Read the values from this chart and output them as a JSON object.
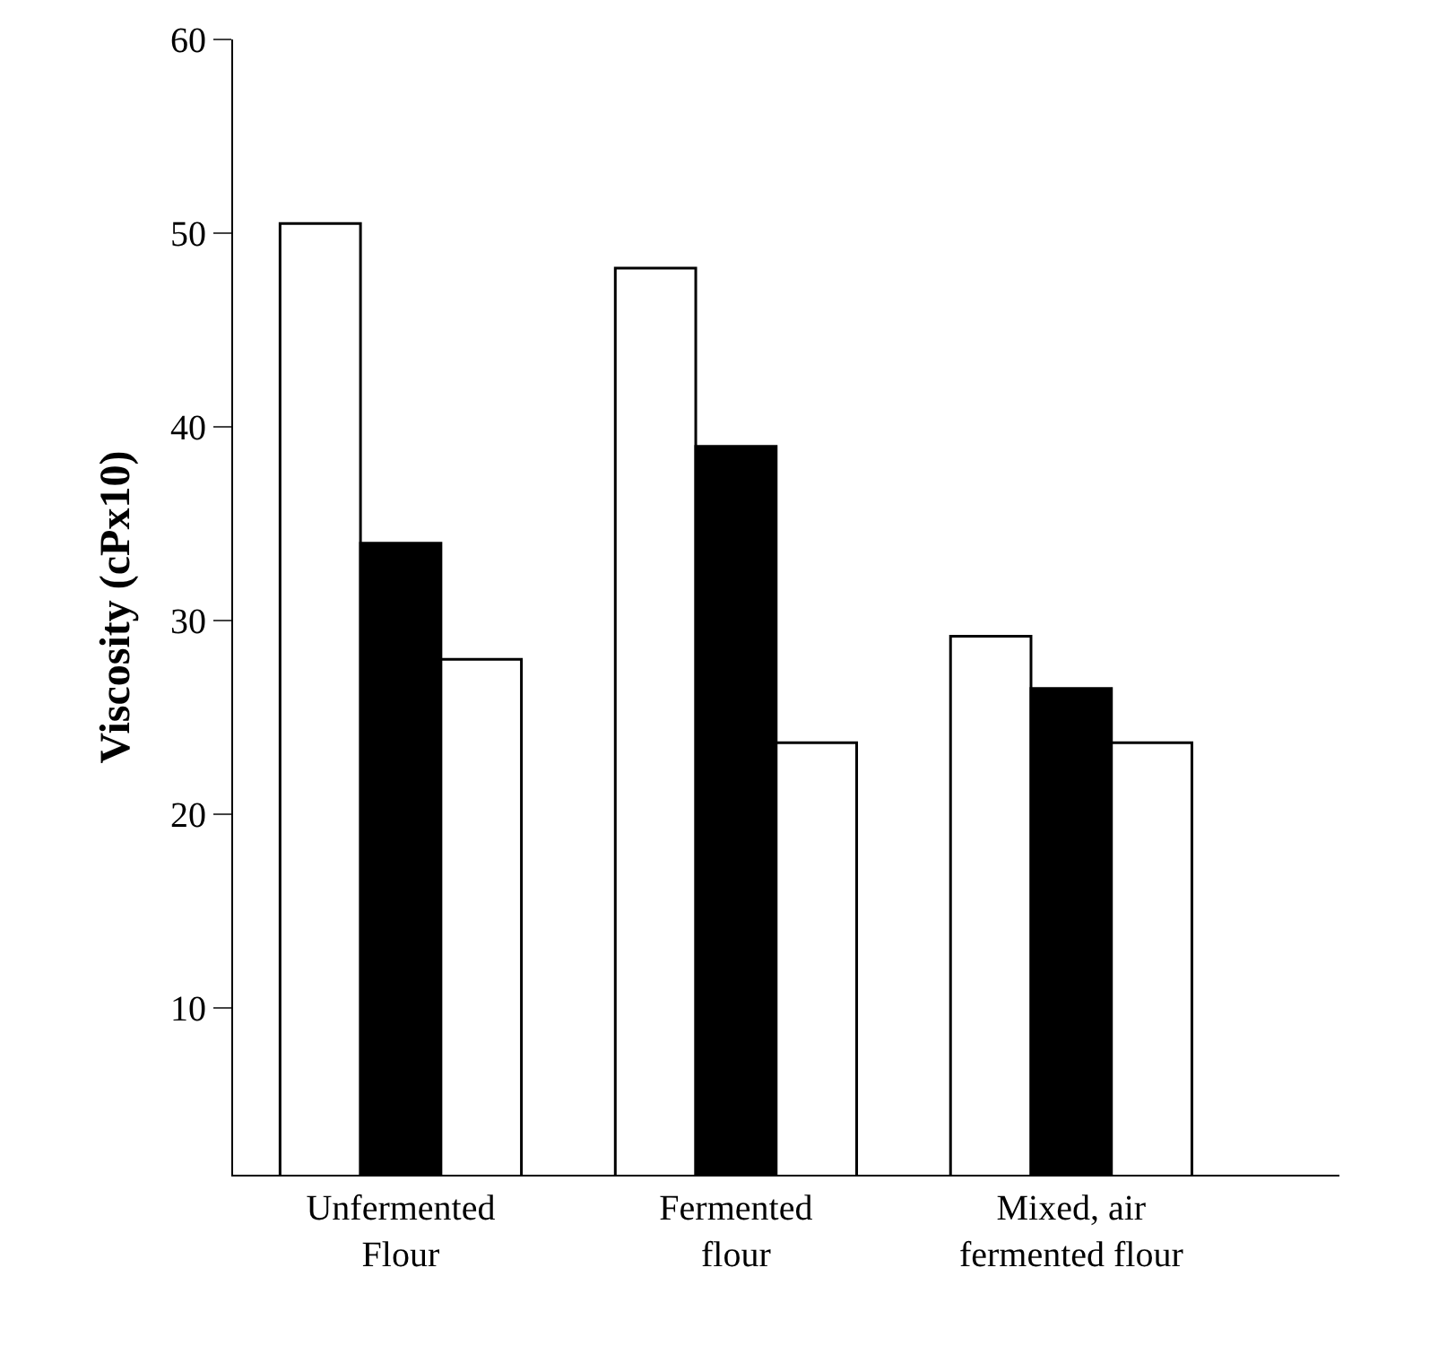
{
  "chart_data": {
    "type": "bar",
    "ylabel": "Viscosity (cPx10)",
    "categories": [
      "Unfermented\nFlour",
      "Fermented\nflour",
      "Mixed, air\nfermented flour"
    ],
    "series": [
      {
        "color": "#ffffff",
        "values": [
          50.5,
          48.2,
          29.2
        ]
      },
      {
        "color": "#000000",
        "values": [
          34.0,
          39.0,
          26.5
        ]
      },
      {
        "color": "#ffffff",
        "values": [
          28.0,
          23.7,
          23.7
        ]
      }
    ],
    "ylim": [
      1.4,
      60
    ],
    "yticks": [
      10,
      20,
      30,
      40,
      50,
      60
    ]
  }
}
